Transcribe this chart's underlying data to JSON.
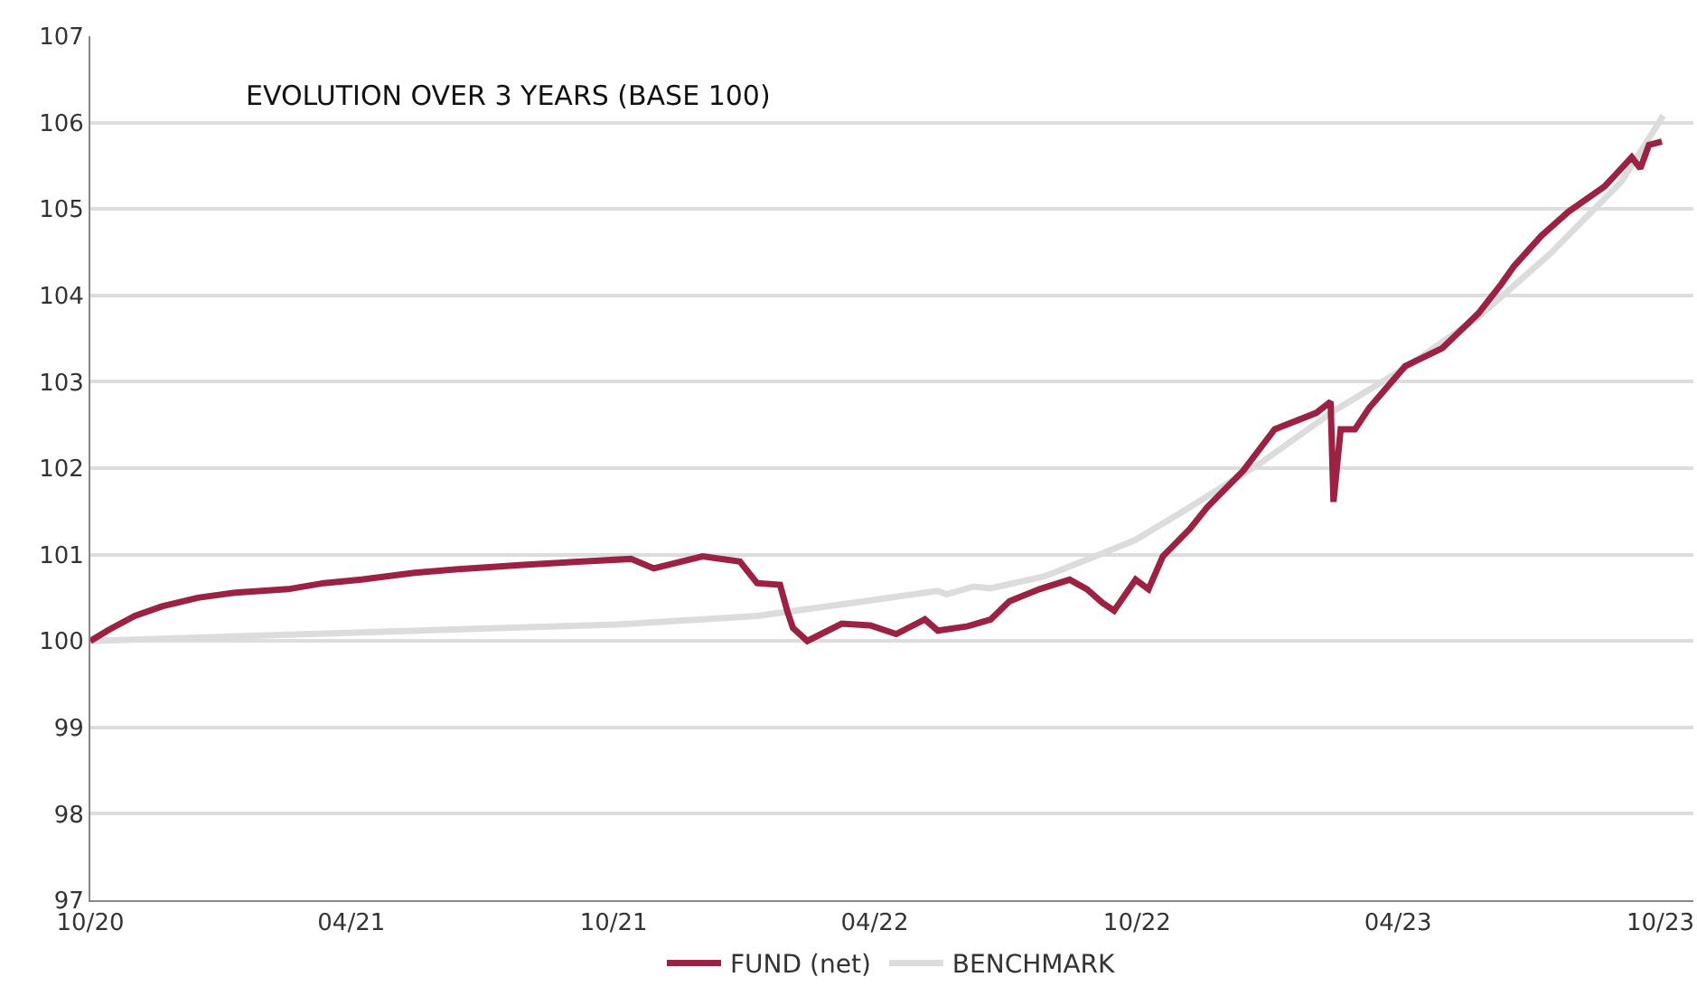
{
  "chart_data": {
    "type": "line",
    "title": "EVOLUTION OVER 3 YEARS (BASE 100)",
    "xlim": [
      "2020-10-01",
      "2023-10-24"
    ],
    "xticks": [
      {
        "value": "2020-10-01",
        "label": "10/20"
      },
      {
        "value": "2021-04-01",
        "label": "04/21"
      },
      {
        "value": "2021-10-01",
        "label": "10/21"
      },
      {
        "value": "2022-04-01",
        "label": "04/22"
      },
      {
        "value": "2022-10-01",
        "label": "10/22"
      },
      {
        "value": "2023-04-01",
        "label": "04/23"
      },
      {
        "value": "2023-10-01",
        "label": "10/23"
      }
    ],
    "ylim": [
      97,
      107
    ],
    "yticks": [
      97,
      98,
      99,
      100,
      101,
      102,
      103,
      104,
      105,
      106,
      107
    ],
    "grid": "y",
    "legend": "bottom",
    "marker": "none",
    "line_style": "solid",
    "series": [
      {
        "name": "FUND (net)",
        "color": "#9b2242",
        "x": [
          "2020-10-01",
          "2020-10-14",
          "2020-11-01",
          "2020-11-20",
          "2020-12-15",
          "2021-01-10",
          "2021-02-16",
          "2021-03-13",
          "2021-04-08",
          "2021-05-15",
          "2021-06-22",
          "2021-07-30",
          "2021-09-09",
          "2021-10-13",
          "2021-10-29",
          "2021-12-02",
          "2021-12-28",
          "2022-01-09",
          "2022-01-25",
          "2022-01-30",
          "2022-02-03",
          "2022-02-13",
          "2022-03-09",
          "2022-03-29",
          "2022-04-16",
          "2022-05-06",
          "2022-05-15",
          "2022-06-05",
          "2022-06-21",
          "2022-07-04",
          "2022-07-25",
          "2022-08-15",
          "2022-08-27",
          "2022-09-07",
          "2022-09-15",
          "2022-09-30",
          "2022-10-09",
          "2022-10-19",
          "2022-11-07",
          "2022-11-19",
          "2022-12-14",
          "2023-01-05",
          "2023-02-03",
          "2023-02-13",
          "2023-02-15",
          "2023-02-20",
          "2023-03-02",
          "2023-03-12",
          "2023-04-06",
          "2023-05-02",
          "2023-05-27",
          "2023-06-12",
          "2023-06-21",
          "2023-07-10",
          "2023-07-29",
          "2023-08-23",
          "2023-09-11",
          "2023-09-17",
          "2023-09-23",
          "2023-10-02"
        ],
        "values": [
          100.0,
          100.13,
          100.29,
          100.4,
          100.5,
          100.56,
          100.6,
          100.67,
          100.71,
          100.79,
          100.84,
          100.88,
          100.92,
          100.95,
          100.84,
          100.98,
          100.92,
          100.67,
          100.65,
          100.35,
          100.15,
          100.0,
          100.2,
          100.18,
          100.08,
          100.25,
          100.12,
          100.17,
          100.25,
          100.46,
          100.6,
          100.71,
          100.6,
          100.44,
          100.35,
          100.71,
          100.6,
          100.98,
          101.3,
          101.55,
          101.97,
          102.45,
          102.64,
          102.77,
          101.61,
          102.45,
          102.45,
          102.7,
          103.18,
          103.39,
          103.79,
          104.13,
          104.34,
          104.69,
          104.97,
          105.26,
          105.6,
          105.47,
          105.74,
          105.78
        ]
      },
      {
        "name": "BENCHMARK",
        "color": "#dcdcdc",
        "x": [
          "2020-10-01",
          "2021-04-08",
          "2021-10-03",
          "2022-01-09",
          "2022-03-25",
          "2022-05-15",
          "2022-05-21",
          "2022-06-09",
          "2022-06-21",
          "2022-07-29",
          "2022-09-05",
          "2022-09-30",
          "2022-11-07",
          "2022-12-27",
          "2023-02-15",
          "2023-04-06",
          "2023-05-27",
          "2023-07-16",
          "2023-09-04",
          "2023-10-03"
        ],
        "values": [
          100.0,
          100.1,
          100.19,
          100.29,
          100.46,
          100.58,
          100.54,
          100.63,
          100.61,
          100.75,
          101.0,
          101.17,
          101.55,
          102.07,
          102.66,
          103.16,
          103.75,
          104.48,
          105.32,
          106.08
        ]
      }
    ]
  }
}
